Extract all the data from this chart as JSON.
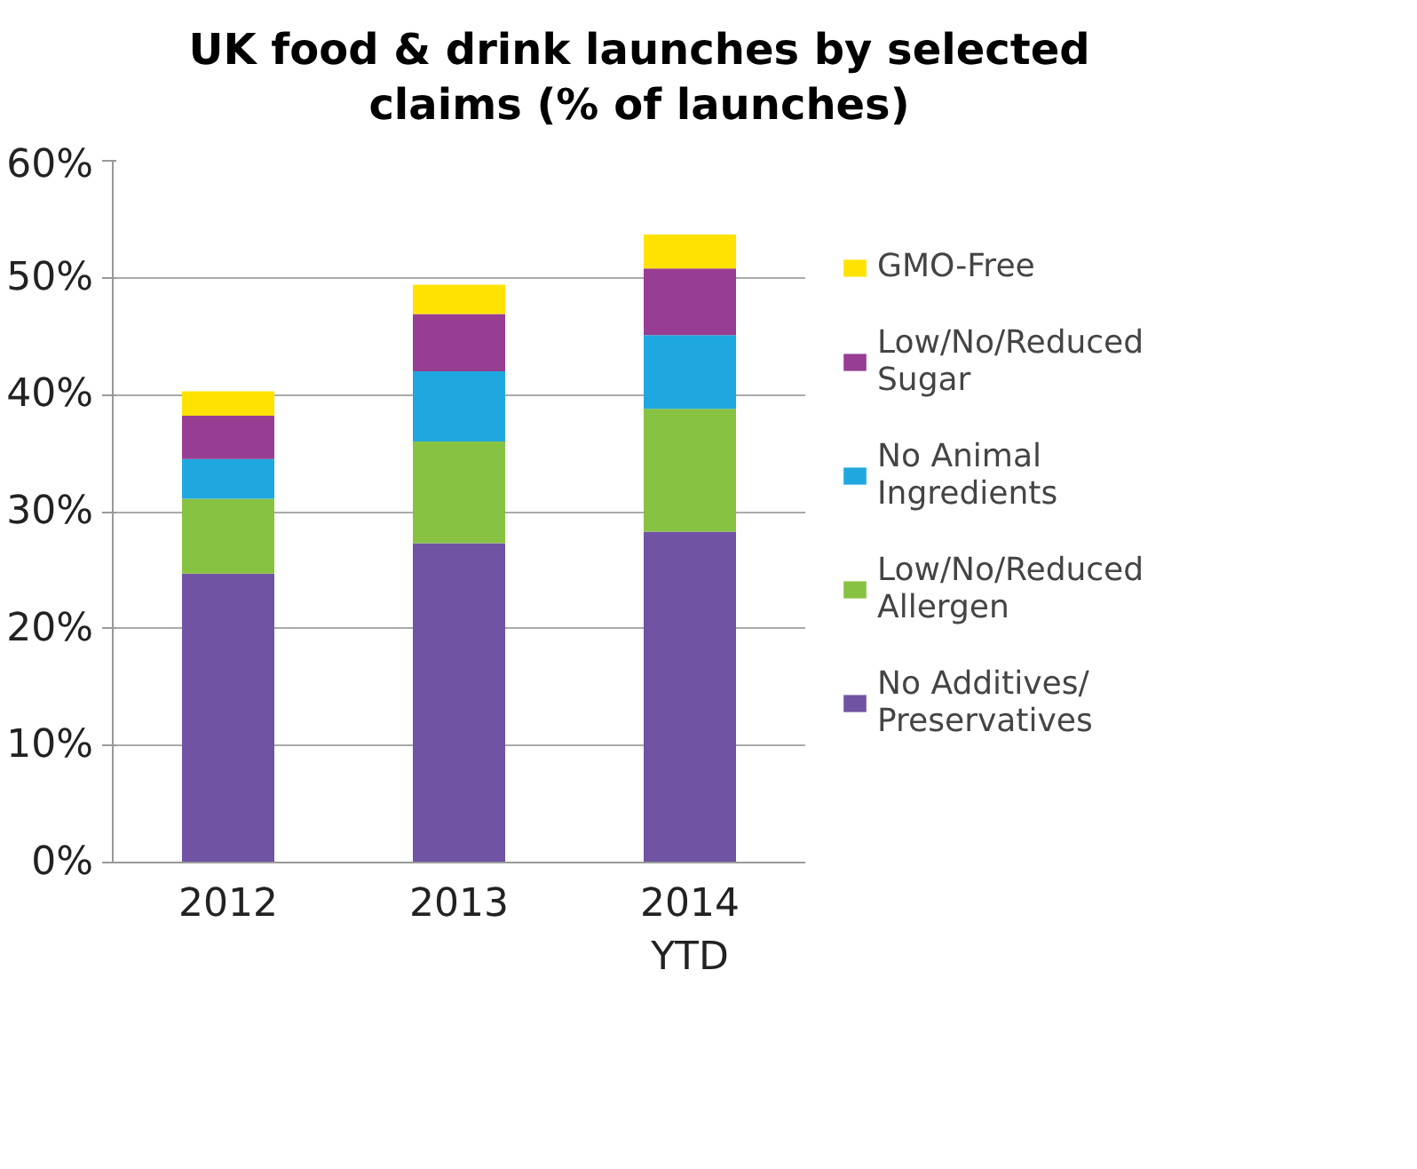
{
  "chart_data": {
    "type": "bar",
    "title": "UK food & drink launches by selected claims (% of launches)",
    "categories": [
      "2012",
      "2013",
      "2014 YTD"
    ],
    "stacked": true,
    "series": [
      {
        "name": "No Additives/ Preservatives",
        "color": "#7053a2",
        "values": [
          24.7,
          27.3,
          28.3
        ]
      },
      {
        "name": "Low/No/Reduced Allergen",
        "color": "#88c242",
        "values": [
          6.4,
          8.7,
          10.5
        ]
      },
      {
        "name": "No Animal Ingredients",
        "color": "#1fa8e0",
        "values": [
          3.4,
          6.0,
          6.3
        ]
      },
      {
        "name": "Low/No/Reduced Sugar",
        "color": "#973d92",
        "values": [
          3.7,
          4.9,
          5.7
        ]
      },
      {
        "name": "GMO-Free",
        "color": "#ffe200",
        "values": [
          2.1,
          2.5,
          2.9
        ]
      }
    ],
    "ylim": [
      0,
      60
    ],
    "yticks": [
      {
        "value": 0,
        "label": "0%"
      },
      {
        "value": 10,
        "label": "10%"
      },
      {
        "value": 20,
        "label": "20%"
      },
      {
        "value": 30,
        "label": "30%"
      },
      {
        "value": 40,
        "label": "40%"
      },
      {
        "value": 50,
        "label": "50%"
      },
      {
        "value": 60,
        "label": "60%"
      }
    ],
    "grid": "y",
    "legend": "right"
  }
}
